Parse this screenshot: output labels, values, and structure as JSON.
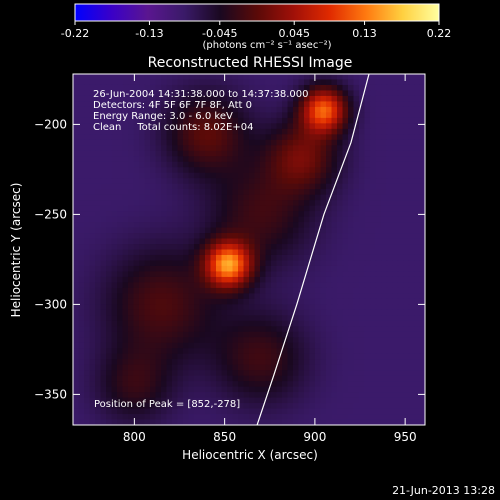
{
  "chart_data": {
    "type": "heatmap",
    "title": "Reconstructed RHESSI Image",
    "xlabel": "Heliocentric X (arcsec)",
    "ylabel": "Heliocentric Y (arcsec)",
    "xlim": [
      766,
      961
    ],
    "ylim": [
      -367,
      -172
    ],
    "x_ticks": [
      800,
      850,
      900,
      950
    ],
    "y_ticks": [
      -200,
      -250,
      -300,
      -350
    ],
    "colorbar": {
      "min": -0.22,
      "max": 0.22,
      "ticks": [
        "-0.22",
        "-0.13",
        "-0.045",
        "0.045",
        "0.13",
        "0.22"
      ],
      "label": "(photons cm⁻² s⁻¹ asec⁻²)",
      "colormap": [
        "#0000ff",
        "#3a00c8",
        "#5a1690",
        "#3a1a68",
        "#1a0820",
        "#5a0a08",
        "#a01008",
        "#e02a00",
        "#ff7a10",
        "#ffd040",
        "#ffffa0"
      ]
    },
    "annotations": [
      "26-Jun-2004 14:31:38.000 to 14:37:38.000",
      "Detectors: 4F 5F 6F 7F 8F, Att 0",
      "Energy Range: 3.0 - 6.0 keV",
      "Clean     Total counts: 8.02E+04"
    ],
    "peak_label": "Position of Peak = [852,-278]",
    "sources": [
      {
        "x": 852,
        "y": -278,
        "peak": 0.22,
        "sigma": 9
      },
      {
        "x": 905,
        "y": -192,
        "peak": 0.2,
        "sigma": 9
      },
      {
        "x": 893,
        "y": -218,
        "peak": 0.1,
        "sigma": 14
      },
      {
        "x": 840,
        "y": -205,
        "peak": 0.09,
        "sigma": 16
      },
      {
        "x": 815,
        "y": -300,
        "peak": 0.08,
        "sigma": 22
      },
      {
        "x": 870,
        "y": -250,
        "peak": 0.07,
        "sigma": 20
      },
      {
        "x": 870,
        "y": -330,
        "peak": 0.07,
        "sigma": 18
      },
      {
        "x": 800,
        "y": -345,
        "peak": 0.06,
        "sigma": 15
      }
    ],
    "limb": [
      [
        930,
        -172
      ],
      [
        920,
        -210
      ],
      [
        905,
        -250
      ],
      [
        890,
        -300
      ],
      [
        877,
        -340
      ],
      [
        868,
        -367
      ]
    ],
    "background": -0.09
  },
  "footer": {
    "timestamp": "21-Jun-2013 13:28"
  }
}
